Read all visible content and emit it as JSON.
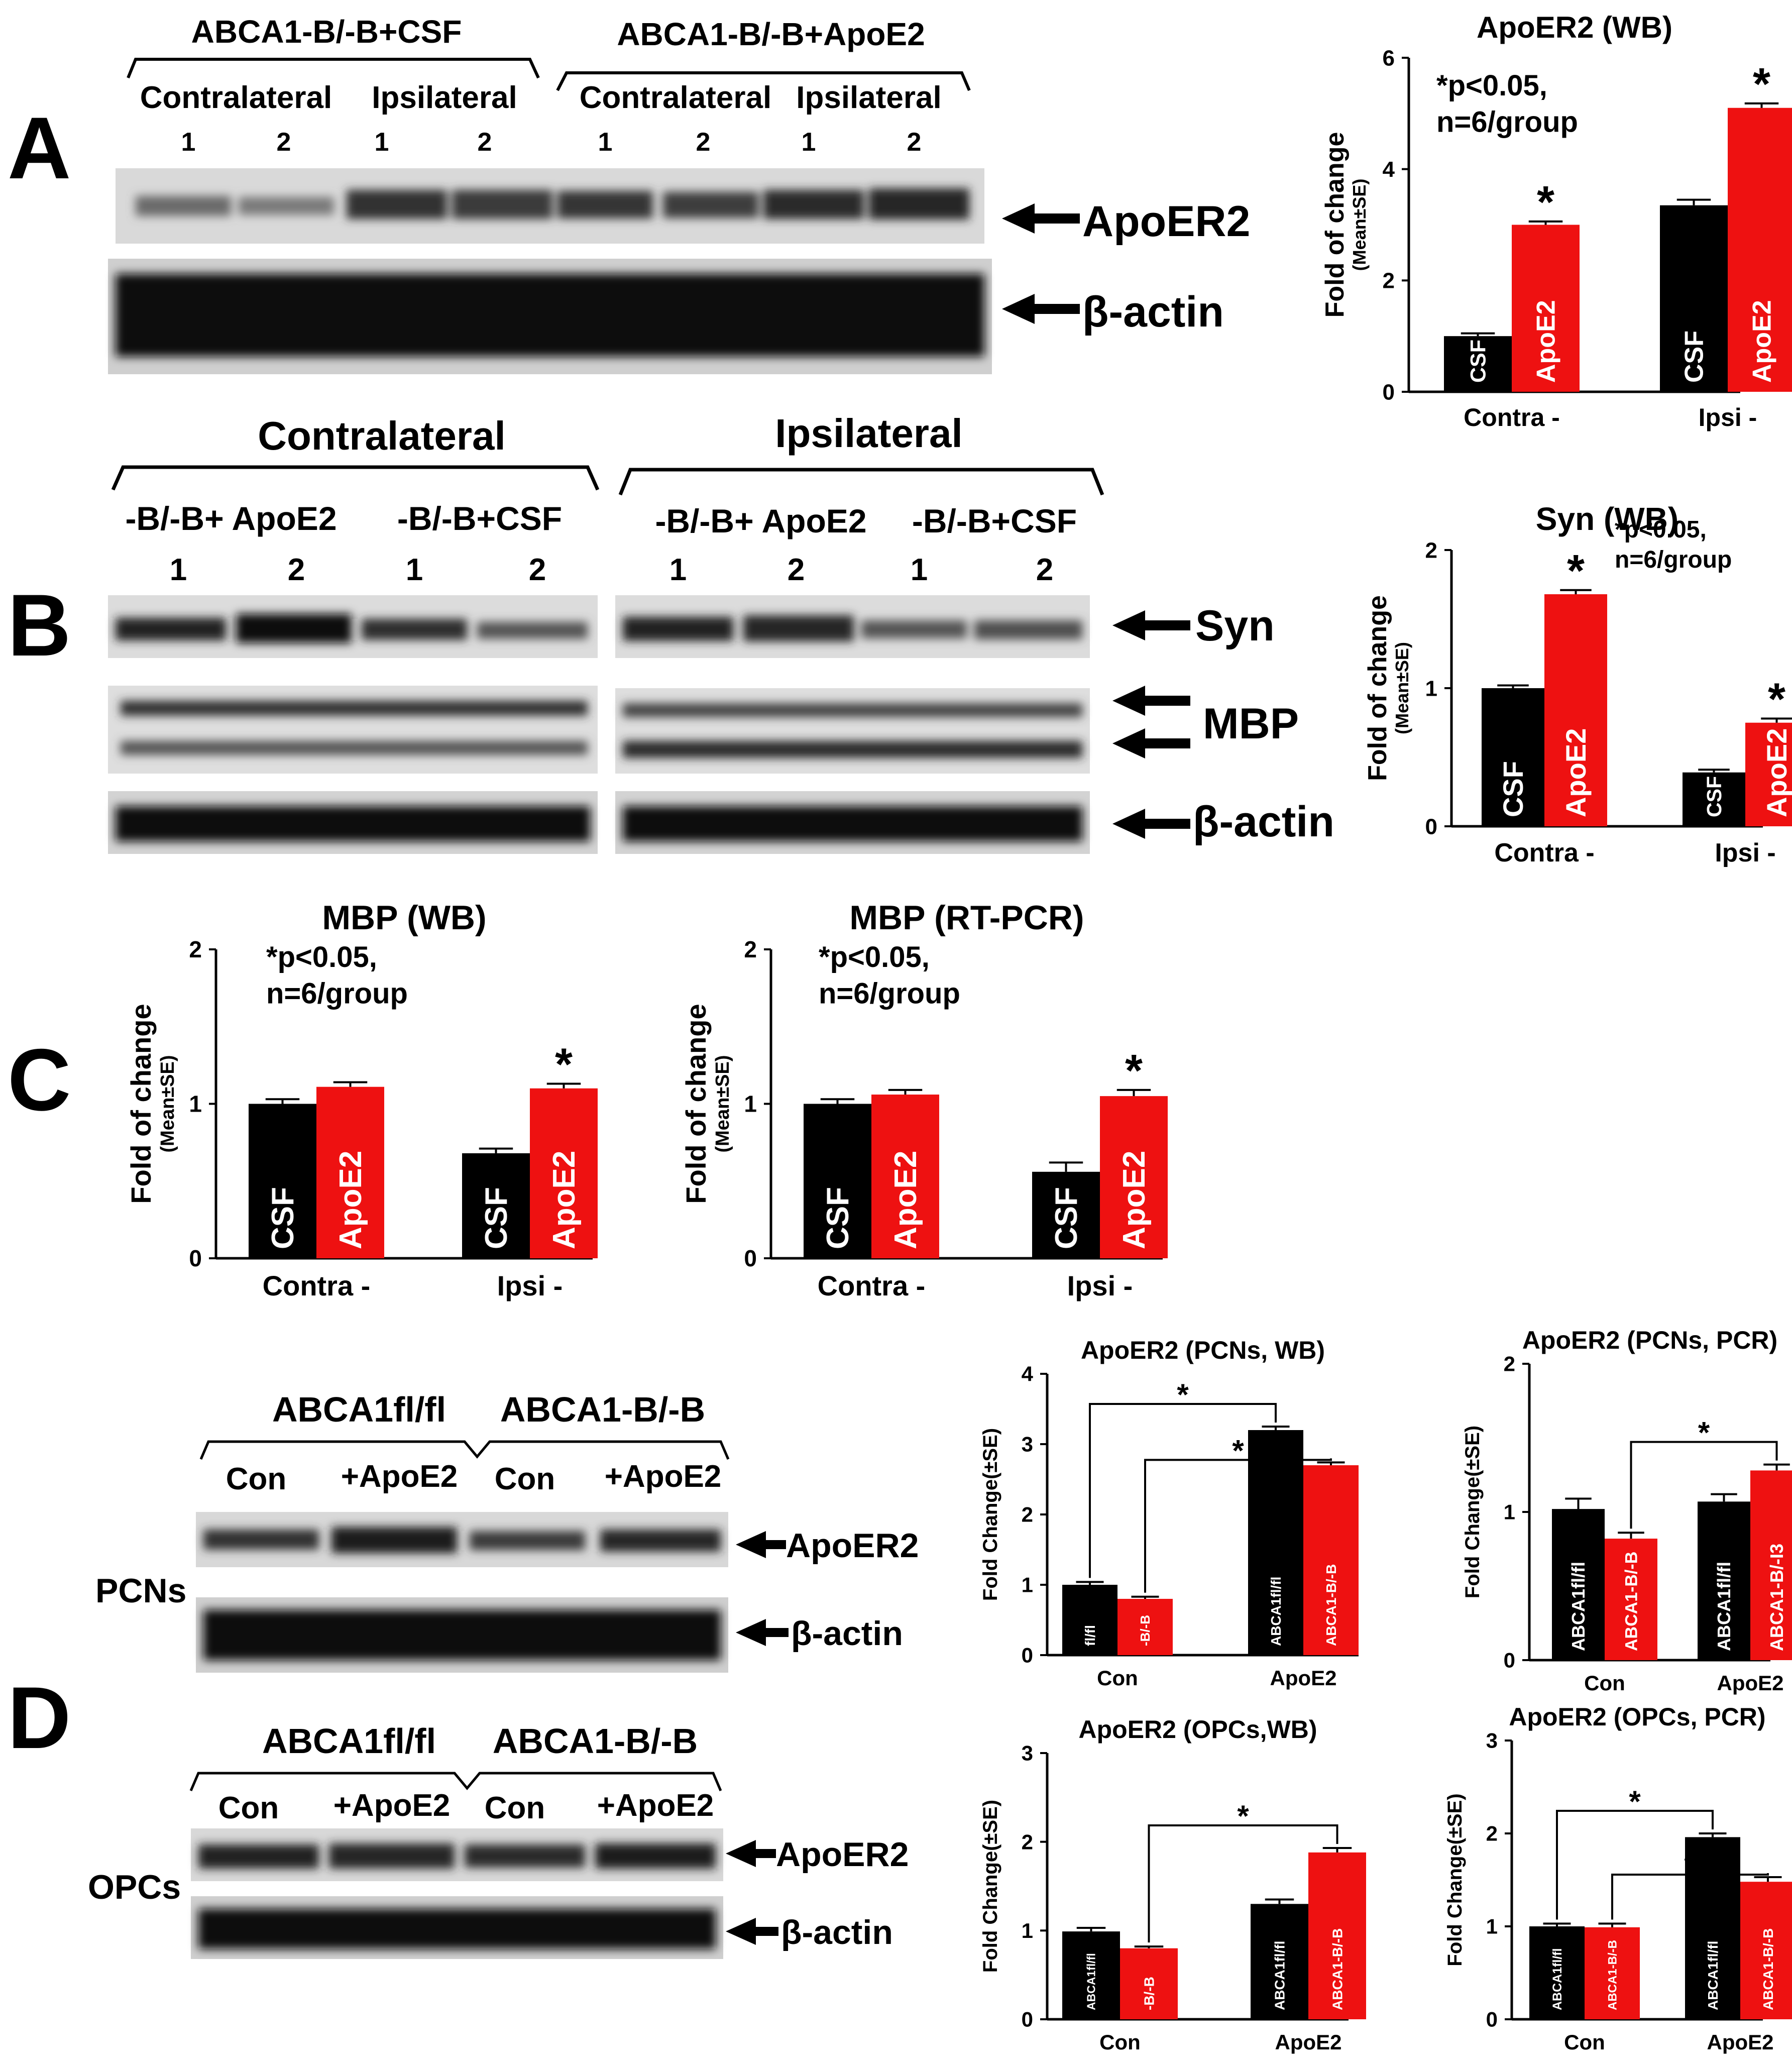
{
  "colors": {
    "csf": "#000000",
    "apoe2": "#ee1111",
    "control": "#000000",
    "treated": "#ee1111"
  },
  "panels": {
    "A": {
      "letter": "A",
      "groups": [
        "ABCA1-B/-B+CSF",
        "ABCA1-B/-B+ApoE2"
      ],
      "subgroups": [
        "Contralateral",
        "Ipsilateral",
        "Contralateral",
        "Ipsilateral"
      ],
      "lanes": [
        "1",
        "2",
        "1",
        "2",
        "1",
        "2",
        "1",
        "2"
      ],
      "band_labels": [
        "ApoER2",
        "β-actin"
      ]
    },
    "B": {
      "letter": "B",
      "groups": [
        "Contralateral",
        "Ipsilateral"
      ],
      "subgroups": [
        "-B/-B+ ApoE2",
        "-B/-B+CSF",
        "-B/-B+ ApoE2",
        "-B/-B+CSF"
      ],
      "lanes": [
        "1",
        "2",
        "1",
        "2",
        "1",
        "2",
        "1",
        "2"
      ],
      "band_labels": [
        "Syn",
        "MBP",
        "β-actin"
      ]
    },
    "C": {
      "letter": "C"
    },
    "D": {
      "letter": "D",
      "rows": [
        {
          "cell": "PCNs",
          "groups": [
            "ABCA1fl/fl",
            "ABCA1-B/-B"
          ],
          "lanes": [
            "Con",
            "+ApoE2",
            "Con",
            "+ApoE2"
          ],
          "band_labels": [
            "ApoER2",
            "β-actin"
          ]
        },
        {
          "cell": "OPCs",
          "groups": [
            "ABCA1fl/fl",
            "ABCA1-B/-B"
          ],
          "lanes": [
            "Con",
            "+ApoE2",
            "Con",
            "+ApoE2"
          ],
          "band_labels": [
            "ApoER2",
            "β-actin"
          ]
        }
      ]
    }
  },
  "chart_data": [
    {
      "id": "apoer2-wb",
      "type": "bar",
      "title": "ApoER2 (WB)",
      "ylabel": "Fold of change",
      "ylabel_sub": "(Mean±SE)",
      "note": [
        "*p<0.05,",
        "n=6/group"
      ],
      "categories": [
        "Contra -",
        "Ipsi -"
      ],
      "ylim": [
        0,
        6
      ],
      "yticks": [
        0,
        2,
        4,
        6
      ],
      "series": [
        {
          "name": "CSF",
          "color": "#000000",
          "values": [
            1.0,
            3.35
          ],
          "errors": [
            0.05,
            0.1
          ],
          "labels": [
            "CSF",
            "CSF"
          ]
        },
        {
          "name": "ApoE2",
          "color": "#ee1111",
          "values": [
            3.0,
            5.1
          ],
          "errors": [
            0.06,
            0.08
          ],
          "labels": [
            "ApoE2",
            "ApoE2"
          ],
          "star": [
            true,
            true
          ]
        }
      ]
    },
    {
      "id": "syn-wb",
      "type": "bar",
      "title": "Syn (WB)",
      "ylabel": "Fold of change",
      "ylabel_sub": "(Mean±SE)",
      "note": [
        "*p<0.05,",
        "n=6/group"
      ],
      "categories": [
        "Contra -",
        "Ipsi -"
      ],
      "ylim": [
        0,
        2
      ],
      "yticks": [
        0,
        1,
        2
      ],
      "series": [
        {
          "name": "CSF",
          "color": "#000000",
          "values": [
            1.0,
            0.39
          ],
          "errors": [
            0.02,
            0.02
          ],
          "labels": [
            "CSF",
            "CSF"
          ]
        },
        {
          "name": "ApoE2",
          "color": "#ee1111",
          "values": [
            1.68,
            0.75
          ],
          "errors": [
            0.03,
            0.03
          ],
          "labels": [
            "ApoE2",
            "ApoE2"
          ],
          "star": [
            true,
            true
          ]
        }
      ]
    },
    {
      "id": "mbp-wb",
      "type": "bar",
      "title": "MBP (WB)",
      "ylabel": "Fold of change",
      "ylabel_sub": "(Mean±SE)",
      "note": [
        "*p<0.05,",
        "n=6/group"
      ],
      "categories": [
        "Contra -",
        "Ipsi -"
      ],
      "ylim": [
        0,
        2
      ],
      "yticks": [
        0,
        1,
        2
      ],
      "series": [
        {
          "name": "CSF",
          "color": "#000000",
          "values": [
            1.0,
            0.68
          ],
          "errors": [
            0.03,
            0.03
          ],
          "labels": [
            "CSF",
            "CSF"
          ]
        },
        {
          "name": "ApoE2",
          "color": "#ee1111",
          "values": [
            1.11,
            1.1
          ],
          "errors": [
            0.03,
            0.03
          ],
          "labels": [
            "ApoE2",
            "ApoE2"
          ],
          "star": [
            false,
            true
          ]
        }
      ]
    },
    {
      "id": "mbp-rtpcr",
      "type": "bar",
      "title": "MBP (RT-PCR)",
      "ylabel": "Fold of change",
      "ylabel_sub": "(Mean±SE)",
      "note": [
        "*p<0.05,",
        "n=6/group"
      ],
      "categories": [
        "Contra -",
        "Ipsi -"
      ],
      "ylim": [
        0,
        2
      ],
      "yticks": [
        0,
        1,
        2
      ],
      "series": [
        {
          "name": "CSF",
          "color": "#000000",
          "values": [
            1.0,
            0.56
          ],
          "errors": [
            0.03,
            0.06
          ],
          "labels": [
            "CSF",
            "CSF"
          ]
        },
        {
          "name": "ApoE2",
          "color": "#ee1111",
          "values": [
            1.06,
            1.05
          ],
          "errors": [
            0.03,
            0.04
          ],
          "labels": [
            "ApoE2",
            "ApoE2"
          ],
          "star": [
            false,
            true
          ]
        }
      ]
    },
    {
      "id": "apoer2-pcns-wb",
      "type": "bar",
      "title": "ApoER2 (PCNs, WB)",
      "ylabel": "Fold Change(±SE)",
      "categories": [
        "Con",
        "ApoE2"
      ],
      "ylim": [
        0,
        4
      ],
      "yticks": [
        0,
        1,
        2,
        3,
        4
      ],
      "series": [
        {
          "name": "ABCA1fl/fl",
          "color": "#000000",
          "values": [
            1.0,
            3.2
          ],
          "errors": [
            0.04,
            0.05
          ],
          "labels": [
            "fl/fl",
            "ABCA1fl/fl"
          ]
        },
        {
          "name": "ABCA1-B/-B",
          "color": "#ee1111",
          "values": [
            0.8,
            2.7
          ],
          "errors": [
            0.03,
            0.04
          ],
          "labels": [
            "-B/-B",
            "ABCA1-B/-B"
          ]
        }
      ],
      "brackets": [
        {
          "from": [
            0,
            0
          ],
          "to": [
            1,
            0
          ],
          "label": "*"
        },
        {
          "from": [
            0,
            1
          ],
          "to": [
            1,
            1
          ],
          "label": "*"
        }
      ]
    },
    {
      "id": "apoer2-pcns-pcr",
      "type": "bar",
      "title": "ApoER2 (PCNs, PCR)",
      "ylabel": "Fold Change(±SE)",
      "categories": [
        "Con",
        "ApoE2"
      ],
      "ylim": [
        0,
        2
      ],
      "yticks": [
        0,
        1,
        2
      ],
      "series": [
        {
          "name": "ABCA1fl/fl",
          "color": "#000000",
          "values": [
            1.02,
            1.07
          ],
          "errors": [
            0.07,
            0.05
          ],
          "labels": [
            "ABCA1fl/fl",
            "ABCA1fl/fl"
          ]
        },
        {
          "name": "ABCA1-B/-B",
          "color": "#ee1111",
          "values": [
            0.82,
            1.28
          ],
          "errors": [
            0.04,
            0.04
          ],
          "labels": [
            "ABCA1-B/-B",
            "ABCA1-B/-I3"
          ]
        }
      ],
      "brackets": [
        {
          "from": [
            0,
            1
          ],
          "to": [
            1,
            1
          ],
          "label": "*"
        }
      ]
    },
    {
      "id": "apoer2-opcs-wb",
      "type": "bar",
      "title": "ApoER2 (OPCs,WB)",
      "ylabel": "Fold Change(±SE)",
      "categories": [
        "Con",
        "ApoE2"
      ],
      "ylim": [
        0,
        3
      ],
      "yticks": [
        0,
        1,
        2,
        3
      ],
      "series": [
        {
          "name": "ABCA1fl/fl",
          "color": "#000000",
          "values": [
            0.99,
            1.3
          ],
          "errors": [
            0.04,
            0.05
          ],
          "labels": [
            "ABCA1fl/fl",
            "ABCA1fl/fl"
          ]
        },
        {
          "name": "ABCA1-B/-B",
          "color": "#ee1111",
          "values": [
            0.8,
            1.88
          ],
          "errors": [
            0.02,
            0.05
          ],
          "labels": [
            "-B/-B",
            "ABCA1-B/-B"
          ]
        }
      ],
      "brackets": [
        {
          "from": [
            0,
            1
          ],
          "to": [
            1,
            1
          ],
          "label": "*"
        }
      ]
    },
    {
      "id": "apoer2-opcs-pcr",
      "type": "bar",
      "title": "ApoER2 (OPCs, PCR)",
      "ylabel": "Fold Change(±SE)",
      "categories": [
        "Con",
        "ApoE2"
      ],
      "ylim": [
        0,
        3
      ],
      "yticks": [
        0,
        1,
        2,
        3
      ],
      "series": [
        {
          "name": "ABCA1fl/fl",
          "color": "#000000",
          "values": [
            1.0,
            1.96
          ],
          "errors": [
            0.03,
            0.04
          ],
          "labels": [
            "ABCA1fl/fl",
            "ABCA1fl/fl"
          ]
        },
        {
          "name": "ABCA1-B/-B",
          "color": "#ee1111",
          "values": [
            0.99,
            1.48
          ],
          "errors": [
            0.04,
            0.05
          ],
          "labels": [
            "ABCA1-B/-B",
            "ABCA1-B/-B"
          ]
        }
      ],
      "brackets": [
        {
          "from": [
            0,
            0
          ],
          "to": [
            1,
            0
          ],
          "label": "*"
        },
        {
          "from": [
            0,
            1
          ],
          "to": [
            1,
            1
          ],
          "label": "*"
        }
      ]
    }
  ]
}
